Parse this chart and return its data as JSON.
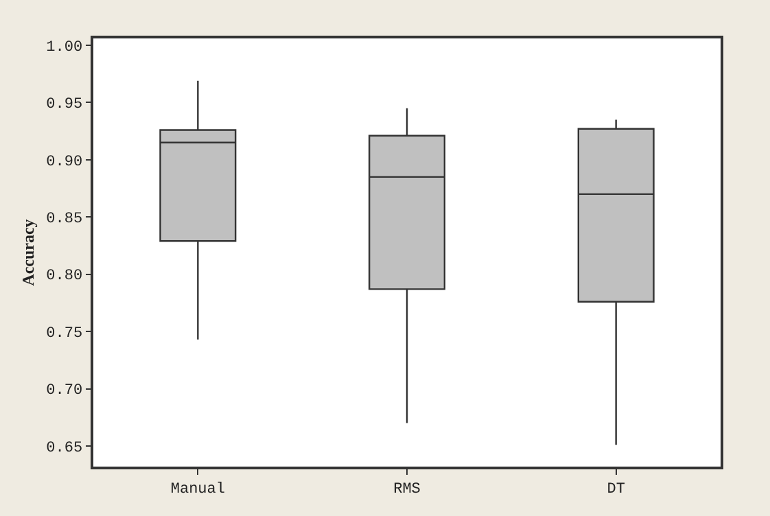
{
  "chart_data": {
    "type": "box",
    "ylabel": "Accuracy",
    "categories": [
      "Manual",
      "RMS",
      "DT"
    ],
    "boxes": [
      {
        "low": 0.743,
        "q1": 0.829,
        "median": 0.915,
        "q3": 0.926,
        "high": 0.969
      },
      {
        "low": 0.67,
        "q1": 0.787,
        "median": 0.885,
        "q3": 0.921,
        "high": 0.945
      },
      {
        "low": 0.651,
        "q1": 0.776,
        "median": 0.87,
        "q3": 0.927,
        "high": 0.935
      }
    ],
    "color": "#c0c0c0",
    "ylim": [
      0.632,
      1.006
    ],
    "yticks": [
      {
        "value": 0.65,
        "label": "0.65"
      },
      {
        "value": 0.7,
        "label": "0.70"
      },
      {
        "value": 0.75,
        "label": "0.75"
      },
      {
        "value": 0.8,
        "label": "0.80"
      },
      {
        "value": 0.85,
        "label": "0.85"
      },
      {
        "value": 0.9,
        "label": "0.90"
      },
      {
        "value": 0.95,
        "label": "0.95"
      },
      {
        "value": 1.0,
        "label": "1.00"
      }
    ]
  }
}
